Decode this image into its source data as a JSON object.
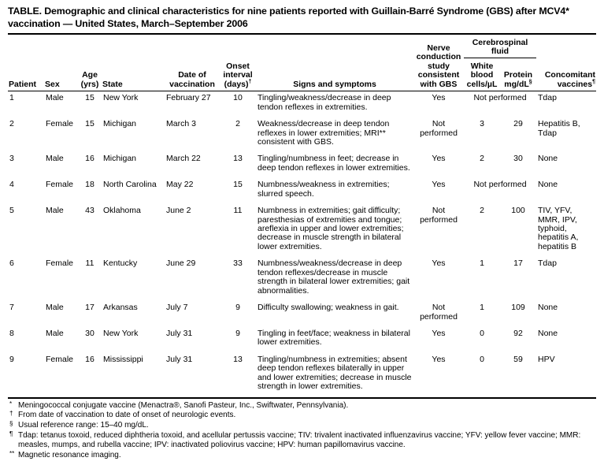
{
  "title": "TABLE. Demographic and clinical characteristics for nine patients reported with Guillain-Barré Syndrome (GBS) after MCV4* vaccination — United States, March–September 2006",
  "table": {
    "headers": {
      "patient": "Patient",
      "sex": "Sex",
      "age": "Age (yrs)",
      "state": "State",
      "date": "Date of vaccination",
      "onset": "Onset interval (days)",
      "onset_sup": "†",
      "signs": "Signs and symptoms",
      "nerve": "Nerve conduction study consistent with GBS",
      "csf_group": "Cerebrospinal fluid",
      "wbc": "White blood cells/µL",
      "protein": "Protein mg/dL",
      "protein_sup": "§",
      "vaccines": "Concomitant vaccines",
      "vaccines_sup": "¶"
    },
    "rows": [
      {
        "patient": "1",
        "sex": "Male",
        "age": "15",
        "state": "New York",
        "date": "February 27",
        "onset": "10",
        "signs": "Tingling/weakness/decrease in deep tendon reflexes in extremities.",
        "nerve": "Yes",
        "csf": "Not performed",
        "vaccines": "Tdap"
      },
      {
        "patient": "2",
        "sex": "Female",
        "age": "15",
        "state": "Michigan",
        "date": "March 3",
        "onset": "2",
        "signs": "Weakness/decrease in deep tendon reflexes in lower extremities; MRI** consistent with GBS.",
        "nerve": "Not performed",
        "wbc": "3",
        "protein": "29",
        "vaccines": "Hepatitis B, Tdap"
      },
      {
        "patient": "3",
        "sex": "Male",
        "age": "16",
        "state": "Michigan",
        "date": "March 22",
        "onset": "13",
        "signs": "Tingling/numbness in feet; decrease in deep tendon reflexes in lower extremities.",
        "nerve": "Yes",
        "wbc": "2",
        "protein": "30",
        "vaccines": "None"
      },
      {
        "patient": "4",
        "sex": "Female",
        "age": "18",
        "state": "North Carolina",
        "date": "May 22",
        "onset": "15",
        "signs": "Numbness/weakness in extremities; slurred speech.",
        "nerve": "Yes",
        "csf": "Not performed",
        "vaccines": "None"
      },
      {
        "patient": "5",
        "sex": "Male",
        "age": "43",
        "state": "Oklahoma",
        "date": "June 2",
        "onset": "11",
        "signs": "Numbness in extremities; gait difficulty; paresthesias of extremities and tongue; areflexia in upper and lower extremities; decrease in muscle strength in bilateral lower extremities.",
        "nerve": "Not performed",
        "wbc": "2",
        "protein": "100",
        "vaccines": "TIV, YFV, MMR, IPV, typhoid, hepatitis A, hepatitis B"
      },
      {
        "patient": "6",
        "sex": "Female",
        "age": "11",
        "state": "Kentucky",
        "date": "June 29",
        "onset": "33",
        "signs": "Numbness/weakness/decrease in deep tendon reflexes/decrease in muscle strength in bilateral lower extremities; gait abnormalities.",
        "nerve": "Yes",
        "wbc": "1",
        "protein": "17",
        "vaccines": "Tdap"
      },
      {
        "patient": "7",
        "sex": "Male",
        "age": "17",
        "state": "Arkansas",
        "date": "July 7",
        "onset": "9",
        "signs": "Difficulty swallowing; weakness in gait.",
        "nerve": "Not performed",
        "wbc": "1",
        "protein": "109",
        "vaccines": "None"
      },
      {
        "patient": "8",
        "sex": "Male",
        "age": "30",
        "state": "New York",
        "date": "July 31",
        "onset": "9",
        "signs": "Tingling in feet/face; weakness in bilateral lower extremities.",
        "nerve": "Yes",
        "wbc": "0",
        "protein": "92",
        "vaccines": "None"
      },
      {
        "patient": "9",
        "sex": "Female",
        "age": "16",
        "state": "Mississippi",
        "date": "July 31",
        "onset": "13",
        "signs": "Tingling/numbness in extremities; absent deep tendon reflexes bilaterally in upper and lower extremities; decrease in muscle strength in lower extremities.",
        "nerve": "Yes",
        "wbc": "0",
        "protein": "59",
        "vaccines": "HPV"
      }
    ]
  },
  "footnotes": [
    {
      "marker": "*",
      "text": "Meningococcal conjugate vaccine (Menactra®, Sanofi Pasteur, Inc., Swiftwater, Pennsylvania)."
    },
    {
      "marker": "†",
      "text": "From date of vaccination to date of onset of neurologic events."
    },
    {
      "marker": "§",
      "text": "Usual reference range: 15–40 mg/dL."
    },
    {
      "marker": "¶",
      "text": "Tdap: tetanus toxoid, reduced diphtheria toxoid, and acellular pertussis vaccine; TIV: trivalent inactivated influenzavirus vaccine; YFV: yellow fever vaccine; MMR: measles, mumps, and rubella vaccine; IPV: inactivated poliovirus vaccine; HPV: human papillomavirus vaccine."
    },
    {
      "marker": "**",
      "text": "Magnetic resonance imaging."
    }
  ]
}
